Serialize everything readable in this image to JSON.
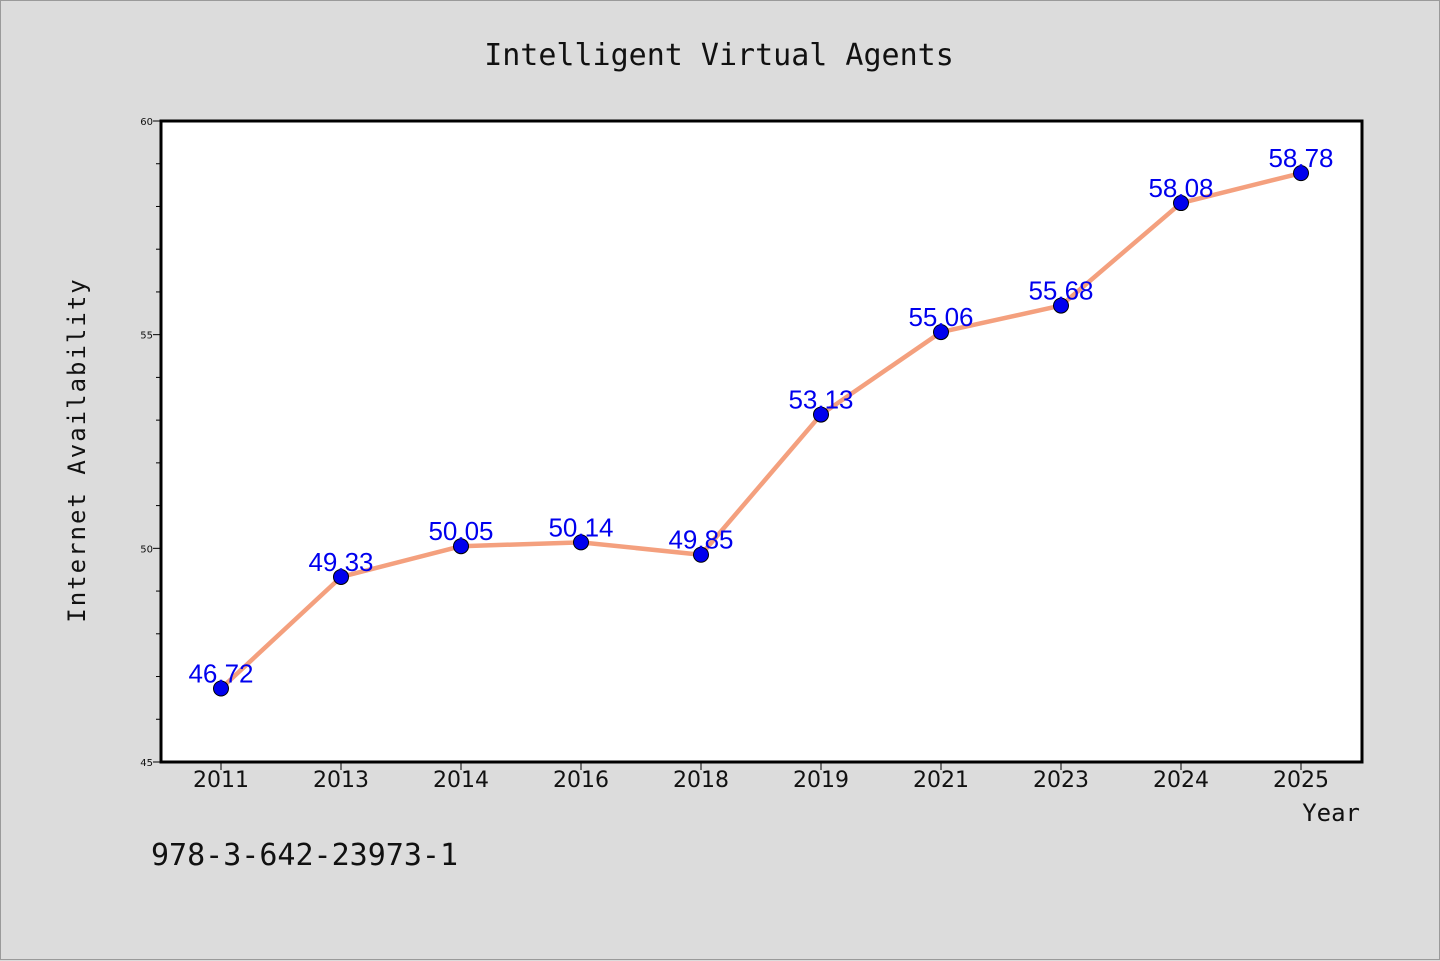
{
  "chart_data": {
    "type": "line",
    "title": "Intelligent Virtual Agents",
    "xlabel": "Year",
    "ylabel": "Internet Availability",
    "categories": [
      "2011",
      "2013",
      "2014",
      "2016",
      "2018",
      "2019",
      "2021",
      "2023",
      "2024",
      "2025"
    ],
    "values": [
      46.72,
      49.33,
      50.05,
      50.14,
      49.85,
      53.13,
      55.06,
      55.68,
      58.08,
      58.78
    ],
    "data_labels": [
      "46.72",
      "49.33",
      "50.05",
      "50.14",
      "49.85",
      "53.13",
      "55.06",
      "55.68",
      "58.08",
      "58.78"
    ],
    "ylim": [
      45,
      60
    ],
    "yticks": [
      "45",
      "50",
      "55",
      "60"
    ],
    "grid": false,
    "legend": "none",
    "colors": {
      "line": "#f4a07e",
      "marker": "#0000ee",
      "label": "#0000ee",
      "background": "#dcdcdc",
      "plot_background": "#ffffff"
    }
  },
  "footer": {
    "isbn": "978-3-642-23973-1"
  }
}
